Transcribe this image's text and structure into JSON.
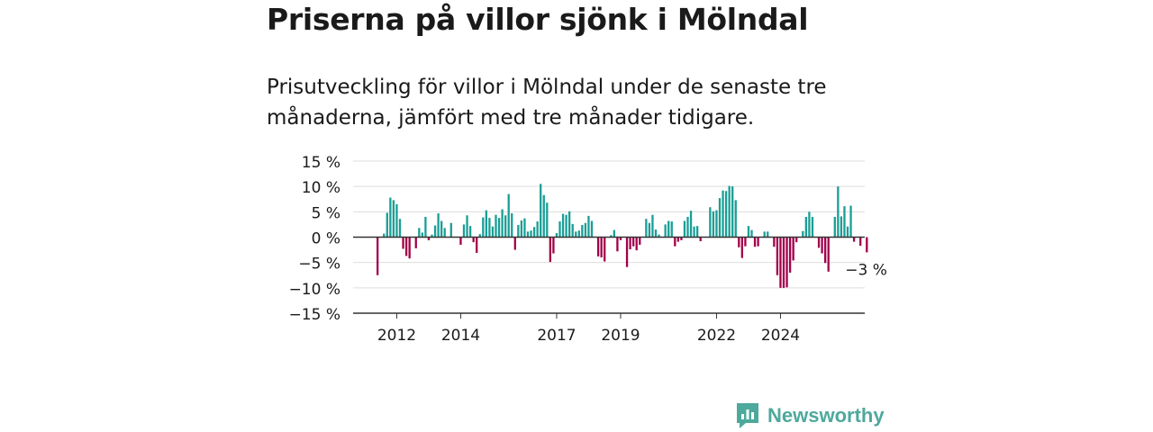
{
  "title": "Priserna på villor sjönk i Mölndal",
  "subtitle": "Prisutveckling för villor i Mölndal under de senaste tre månaderna, jämfört med tre månader tidigare.",
  "brand": {
    "name": "Newsworthy",
    "icon": "newsworthy-logo-icon",
    "color": "#4da99c"
  },
  "colors": {
    "positive": "#1a9e96",
    "negative": "#a3004a",
    "grid": "#dddddd",
    "zero": "#333333"
  },
  "chart_data": {
    "type": "bar",
    "ylim": [
      -15,
      15
    ],
    "y_ticks": [
      15,
      10,
      5,
      0,
      -5,
      -10,
      -15
    ],
    "y_tick_labels": [
      "15 %",
      "10 %",
      "5 %",
      "0 %",
      "−5 %",
      "−10 %",
      "−15 %"
    ],
    "x_ticks": [
      "2012",
      "2014",
      "2017",
      "2019",
      "2022",
      "2024"
    ],
    "x_tick_index": [
      6,
      26,
      56,
      76,
      106,
      126
    ],
    "annotation": "−3 %",
    "grid": "horizontal",
    "series": [
      {
        "values": [
          -7.5,
          0,
          0.7,
          4.8,
          7.8,
          7.3,
          6.5,
          3.6,
          -2.3,
          -3.7,
          -4.2,
          0,
          -2.2,
          1.8,
          0.9,
          4,
          -0.6,
          0.5,
          2.3,
          4.7,
          3.2,
          1.8,
          0,
          2.8,
          0,
          0,
          -1.5,
          2.5,
          4.3,
          2.2,
          -1,
          -3.1,
          0.6,
          3.9,
          5.3,
          3.8,
          2.1,
          4.4,
          3.8,
          5.5,
          4.3,
          8.5,
          4.7,
          -2.5,
          2.4,
          3.3,
          3.7,
          1.1,
          1.3,
          2,
          3.1,
          10.5,
          8.3,
          6.8,
          -4.9,
          -3.2,
          0.8,
          3.1,
          4.6,
          4.4,
          5.1,
          2.6,
          1.1,
          1.3,
          2.4,
          2.8,
          4.2,
          3.2,
          0,
          -3.8,
          -4,
          -4.8,
          0,
          0.4,
          1.4,
          -2.8,
          -0.6,
          0,
          -5.9,
          -2.4,
          -1.8,
          -2.6,
          -1.5,
          0,
          3.6,
          2.8,
          4.4,
          1.5,
          0.5,
          0,
          2.5,
          3.2,
          3.1,
          -1.8,
          -0.9,
          -0.6,
          3.2,
          4,
          5.2,
          2.1,
          2.2,
          -0.8,
          0,
          0,
          5.9,
          5.1,
          5.3,
          7.7,
          9.2,
          9.1,
          10.1,
          10,
          7.3,
          -2,
          -4.1,
          -1.8,
          2.2,
          1.4,
          -1.9,
          -1.8,
          0,
          1.1,
          1.1,
          0,
          -1.9,
          -7.5,
          -10,
          -10,
          -9.9,
          -7,
          -4.6,
          -1,
          0,
          1.2,
          4,
          5,
          4,
          0,
          -2.1,
          -3.2,
          -5.1,
          -6.8,
          0,
          4,
          10,
          4.1,
          6.1,
          2.1,
          6.2,
          -0.9,
          0,
          -1.7,
          0,
          -3
        ]
      }
    ]
  }
}
